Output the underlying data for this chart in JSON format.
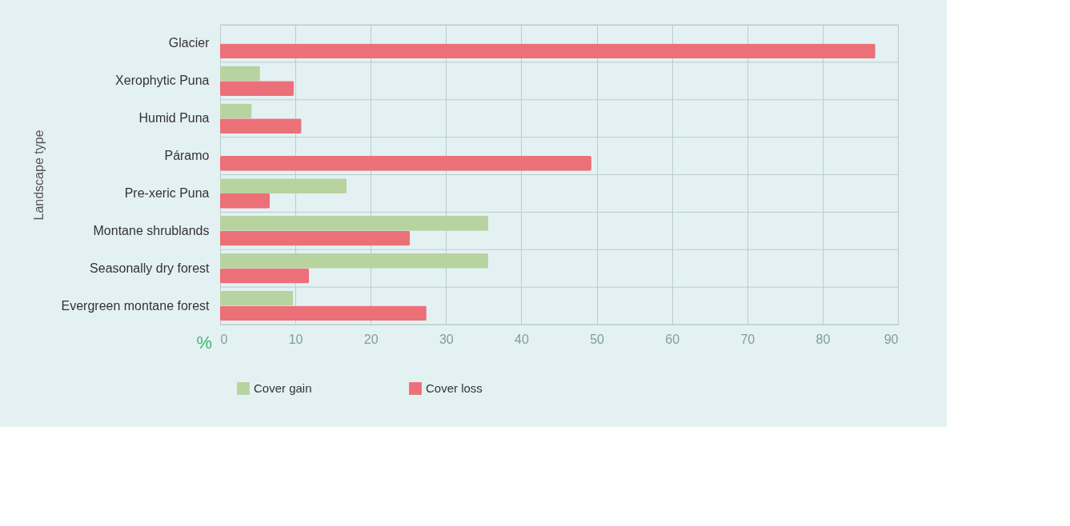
{
  "chart_data": {
    "type": "bar",
    "orientation": "horizontal",
    "ylabel": "Landscape type",
    "xlabel": "%",
    "categories": [
      "Glacier",
      "Xerophytic Puna",
      "Humid Puna",
      "Páramo",
      "Pre-xeric Puna",
      "Montane shrublands",
      "Seasonally dry forest",
      "Evergreen montane forest"
    ],
    "series": [
      {
        "name": "Cover gain",
        "color": "#b7d3a0",
        "values": [
          null,
          5.3,
          4.2,
          null,
          16.8,
          35.6,
          35.6,
          9.7
        ]
      },
      {
        "name": "Cover loss",
        "color": "#ec7078",
        "values": [
          87,
          9.8,
          10.8,
          49.3,
          6.6,
          25.2,
          11.8,
          27.4
        ]
      }
    ],
    "xlim": [
      0,
      90
    ],
    "xticks": [
      0,
      10,
      20,
      30,
      40,
      50,
      60,
      70,
      80,
      90
    ],
    "grid": true,
    "legend": "bottom"
  }
}
